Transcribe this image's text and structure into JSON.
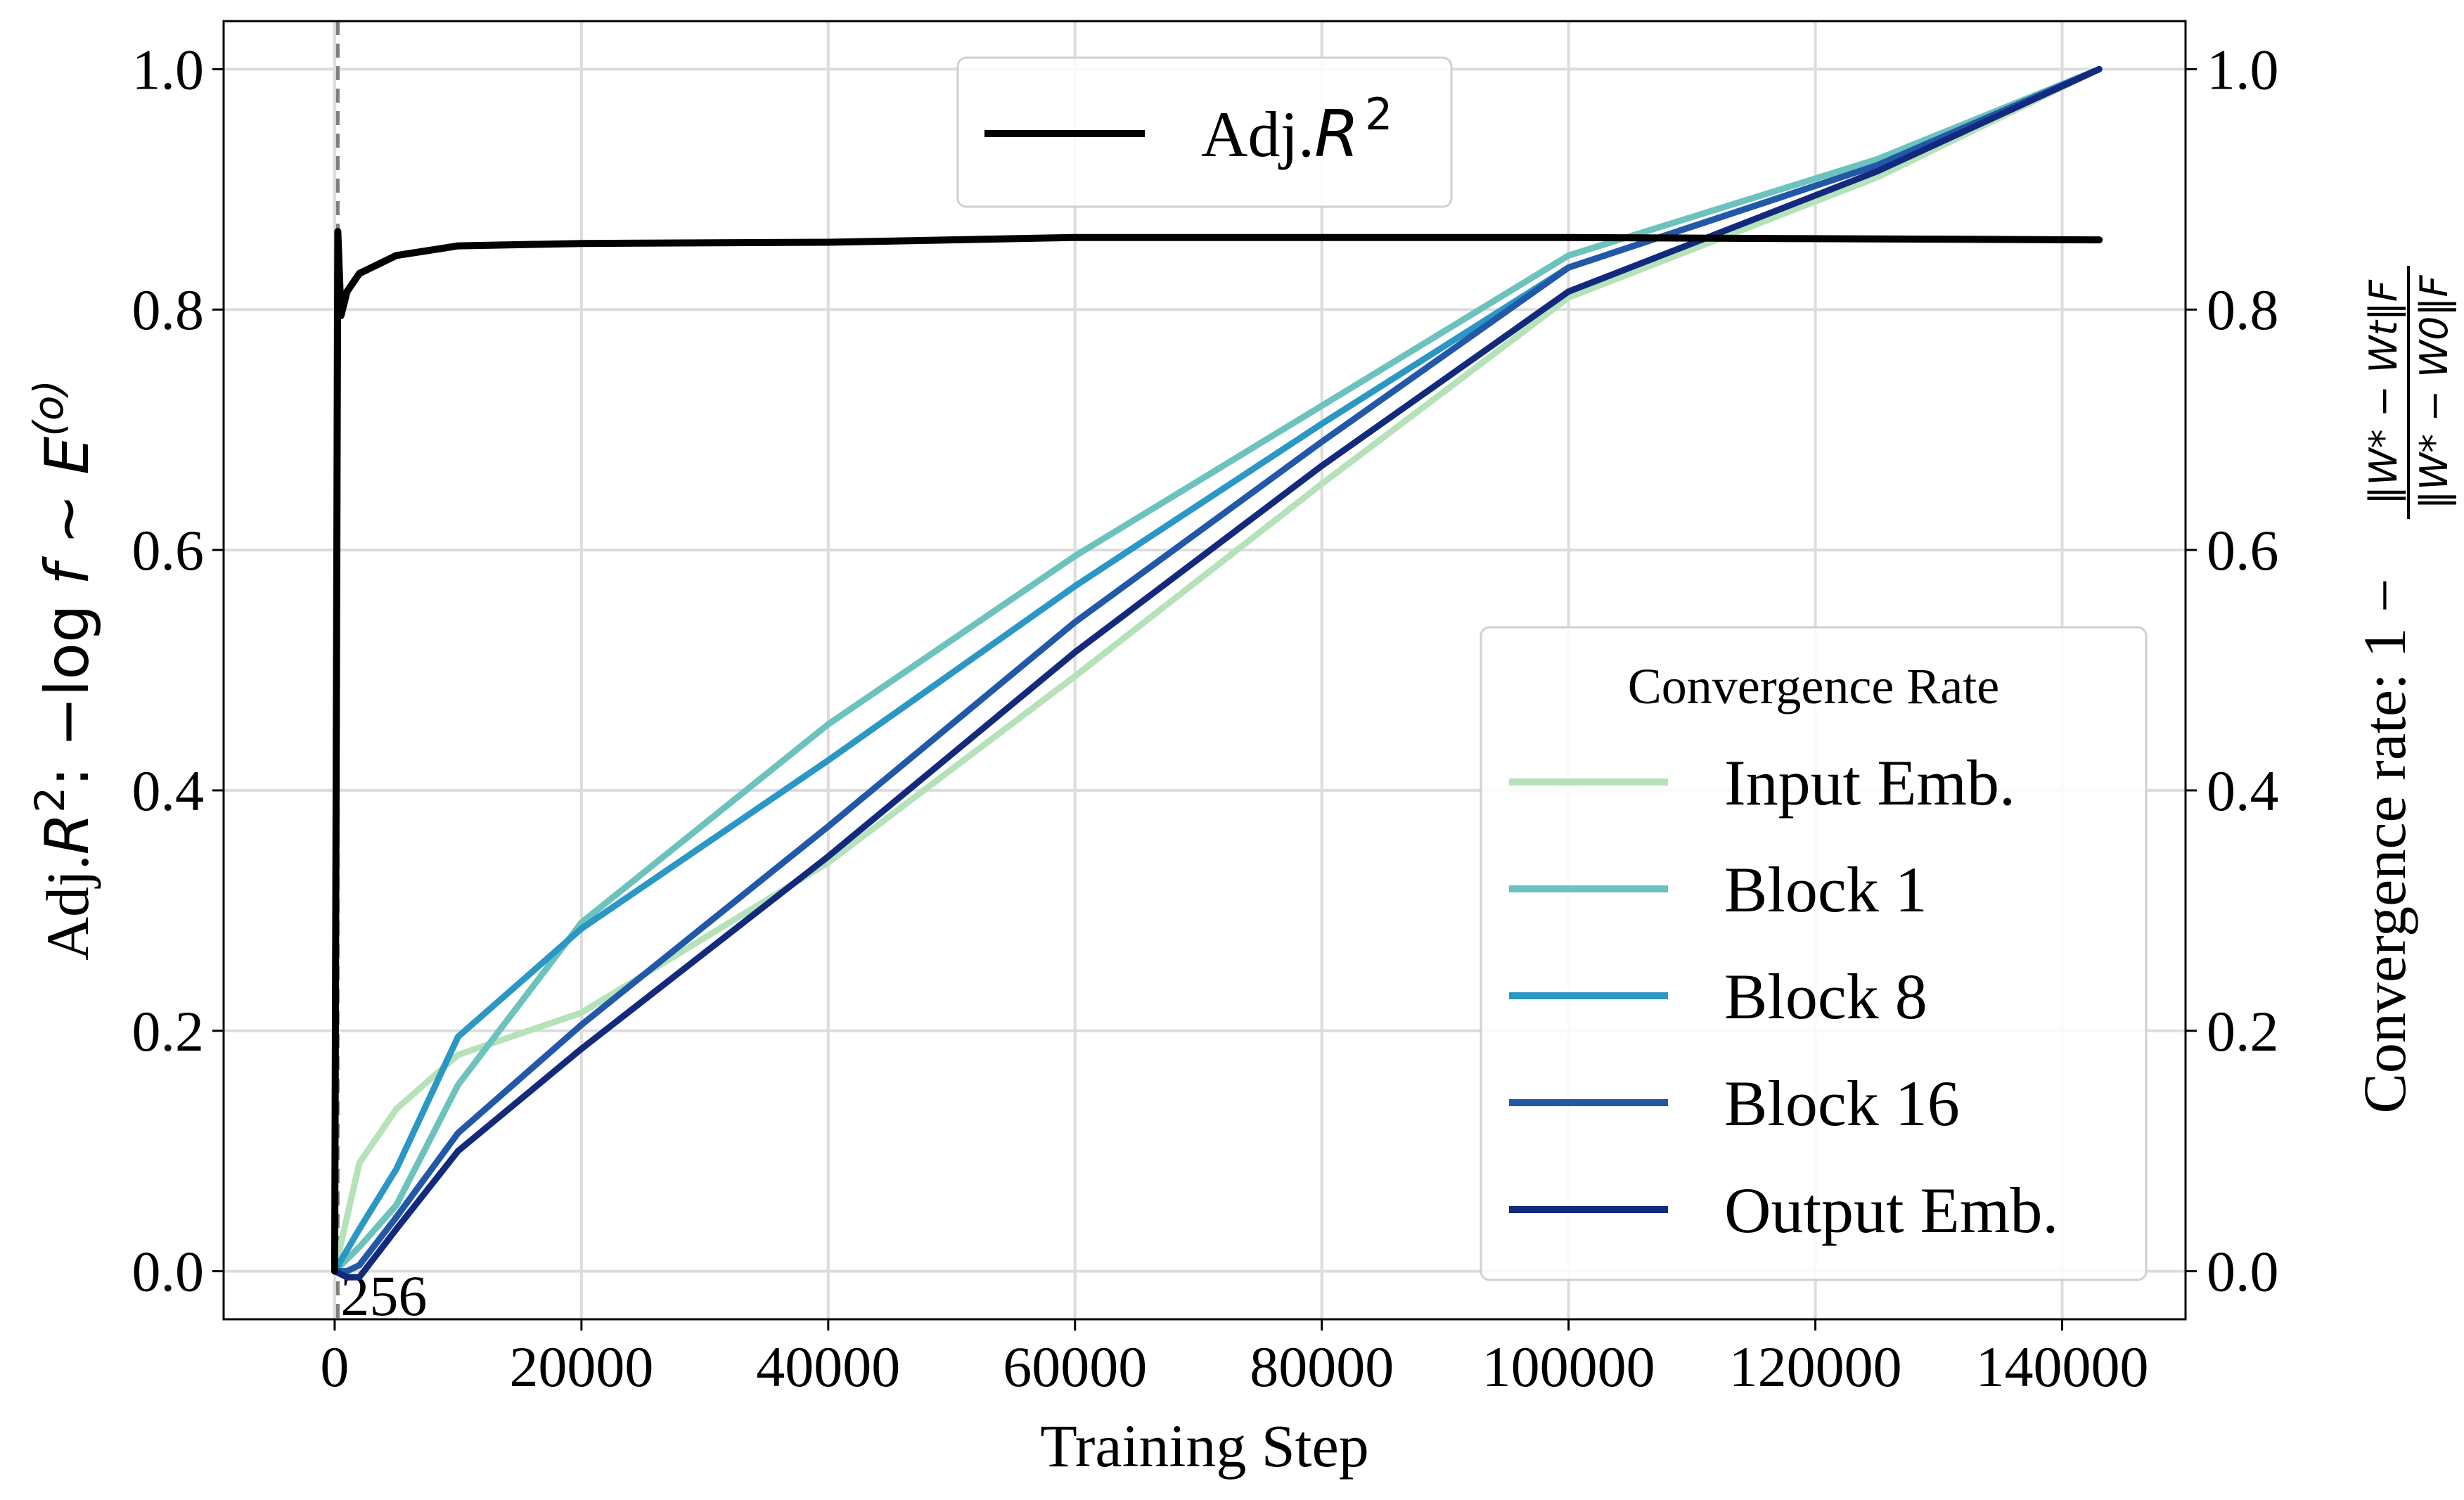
{
  "chart_data": {
    "type": "line",
    "xlabel": "Training Step",
    "ylabel_left": "Adj.R²: −log f ∼ E⁽ᵒ⁾",
    "ylabel_left_parts": {
      "prefix": "Adj.",
      "R": "R",
      "sup": "2",
      "mid": ": −log ",
      "f": "f",
      "sim": " ∼ ",
      "E": "E",
      "o": "(o)"
    },
    "ylabel_right": "Convergence rate: 1 − ‖W* − Wt‖F / ‖W* − W0‖F",
    "ylabel_right_parts": {
      "text": "Convergence rate: 1 −",
      "numerator": "‖W* − Wt‖F",
      "denominator": "‖W* − W0‖F"
    },
    "xlim": [
      -9000,
      150000
    ],
    "ylim": [
      -0.04,
      1.04
    ],
    "x_ticks": [
      0,
      20000,
      40000,
      60000,
      80000,
      100000,
      120000,
      140000
    ],
    "x_tick_labels": [
      "0",
      "20000",
      "40000",
      "60000",
      "80000",
      "100000",
      "120000",
      "140000"
    ],
    "y_ticks": [
      0.0,
      0.2,
      0.4,
      0.6,
      0.8,
      1.0
    ],
    "y_tick_labels_left": [
      "0.0",
      "0.2",
      "0.4",
      "0.6",
      "0.8",
      "1.0"
    ],
    "y_tick_labels_right": [
      "0.0",
      "0.2",
      "0.4",
      "0.6",
      "0.8",
      "1.0"
    ],
    "grid": true,
    "vline": {
      "x": 256,
      "label": "256",
      "style": "dashed",
      "color": "#808080"
    },
    "left_series": [
      {
        "name": "Adj.R²",
        "legend_prefix": "Adj.",
        "legend_R": "R",
        "legend_sup": "2",
        "color": "#000000",
        "x": [
          0,
          256,
          512,
          1000,
          2000,
          5000,
          10000,
          20000,
          40000,
          60000,
          80000,
          100000,
          120000,
          143000
        ],
        "y": [
          0.0,
          0.865,
          0.795,
          0.815,
          0.83,
          0.845,
          0.853,
          0.855,
          0.856,
          0.86,
          0.86,
          0.86,
          0.859,
          0.858
        ]
      }
    ],
    "legend_left_position": "top-center",
    "right_legend": {
      "title": "Convergence Rate",
      "position": "bottom-right"
    },
    "right_series": [
      {
        "name": "Input Emb.",
        "color": "#b5e2b8",
        "x": [
          0,
          2000,
          5000,
          10000,
          20000,
          40000,
          60000,
          80000,
          100000,
          125000,
          143000
        ],
        "y": [
          0.0,
          0.09,
          0.135,
          0.18,
          0.215,
          0.34,
          0.495,
          0.655,
          0.81,
          0.91,
          1.0
        ]
      },
      {
        "name": "Block 1",
        "color": "#6cc2bd",
        "x": [
          0,
          2000,
          5000,
          10000,
          20000,
          40000,
          60000,
          80000,
          100000,
          125000,
          143000
        ],
        "y": [
          0.0,
          0.02,
          0.055,
          0.155,
          0.29,
          0.455,
          0.595,
          0.72,
          0.845,
          0.925,
          1.0
        ]
      },
      {
        "name": "Block 8",
        "color": "#2b97c4",
        "x": [
          0,
          2000,
          5000,
          10000,
          20000,
          40000,
          60000,
          80000,
          100000,
          125000,
          143000
        ],
        "y": [
          0.0,
          0.035,
          0.085,
          0.195,
          0.285,
          0.425,
          0.57,
          0.705,
          0.835,
          0.92,
          1.0
        ]
      },
      {
        "name": "Block 16",
        "color": "#2258a8",
        "x": [
          0,
          1000,
          2000,
          5000,
          10000,
          20000,
          40000,
          60000,
          80000,
          100000,
          125000,
          143000
        ],
        "y": [
          0.0,
          0.0,
          0.005,
          0.045,
          0.115,
          0.205,
          0.37,
          0.54,
          0.69,
          0.835,
          0.92,
          1.0
        ]
      },
      {
        "name": "Output Emb.",
        "color": "#132a7c",
        "x": [
          0,
          1000,
          2000,
          5000,
          10000,
          20000,
          40000,
          60000,
          80000,
          100000,
          125000,
          143000
        ],
        "y": [
          0.0,
          -0.005,
          -0.005,
          0.035,
          0.1,
          0.185,
          0.345,
          0.515,
          0.67,
          0.815,
          0.915,
          1.0
        ]
      }
    ]
  }
}
